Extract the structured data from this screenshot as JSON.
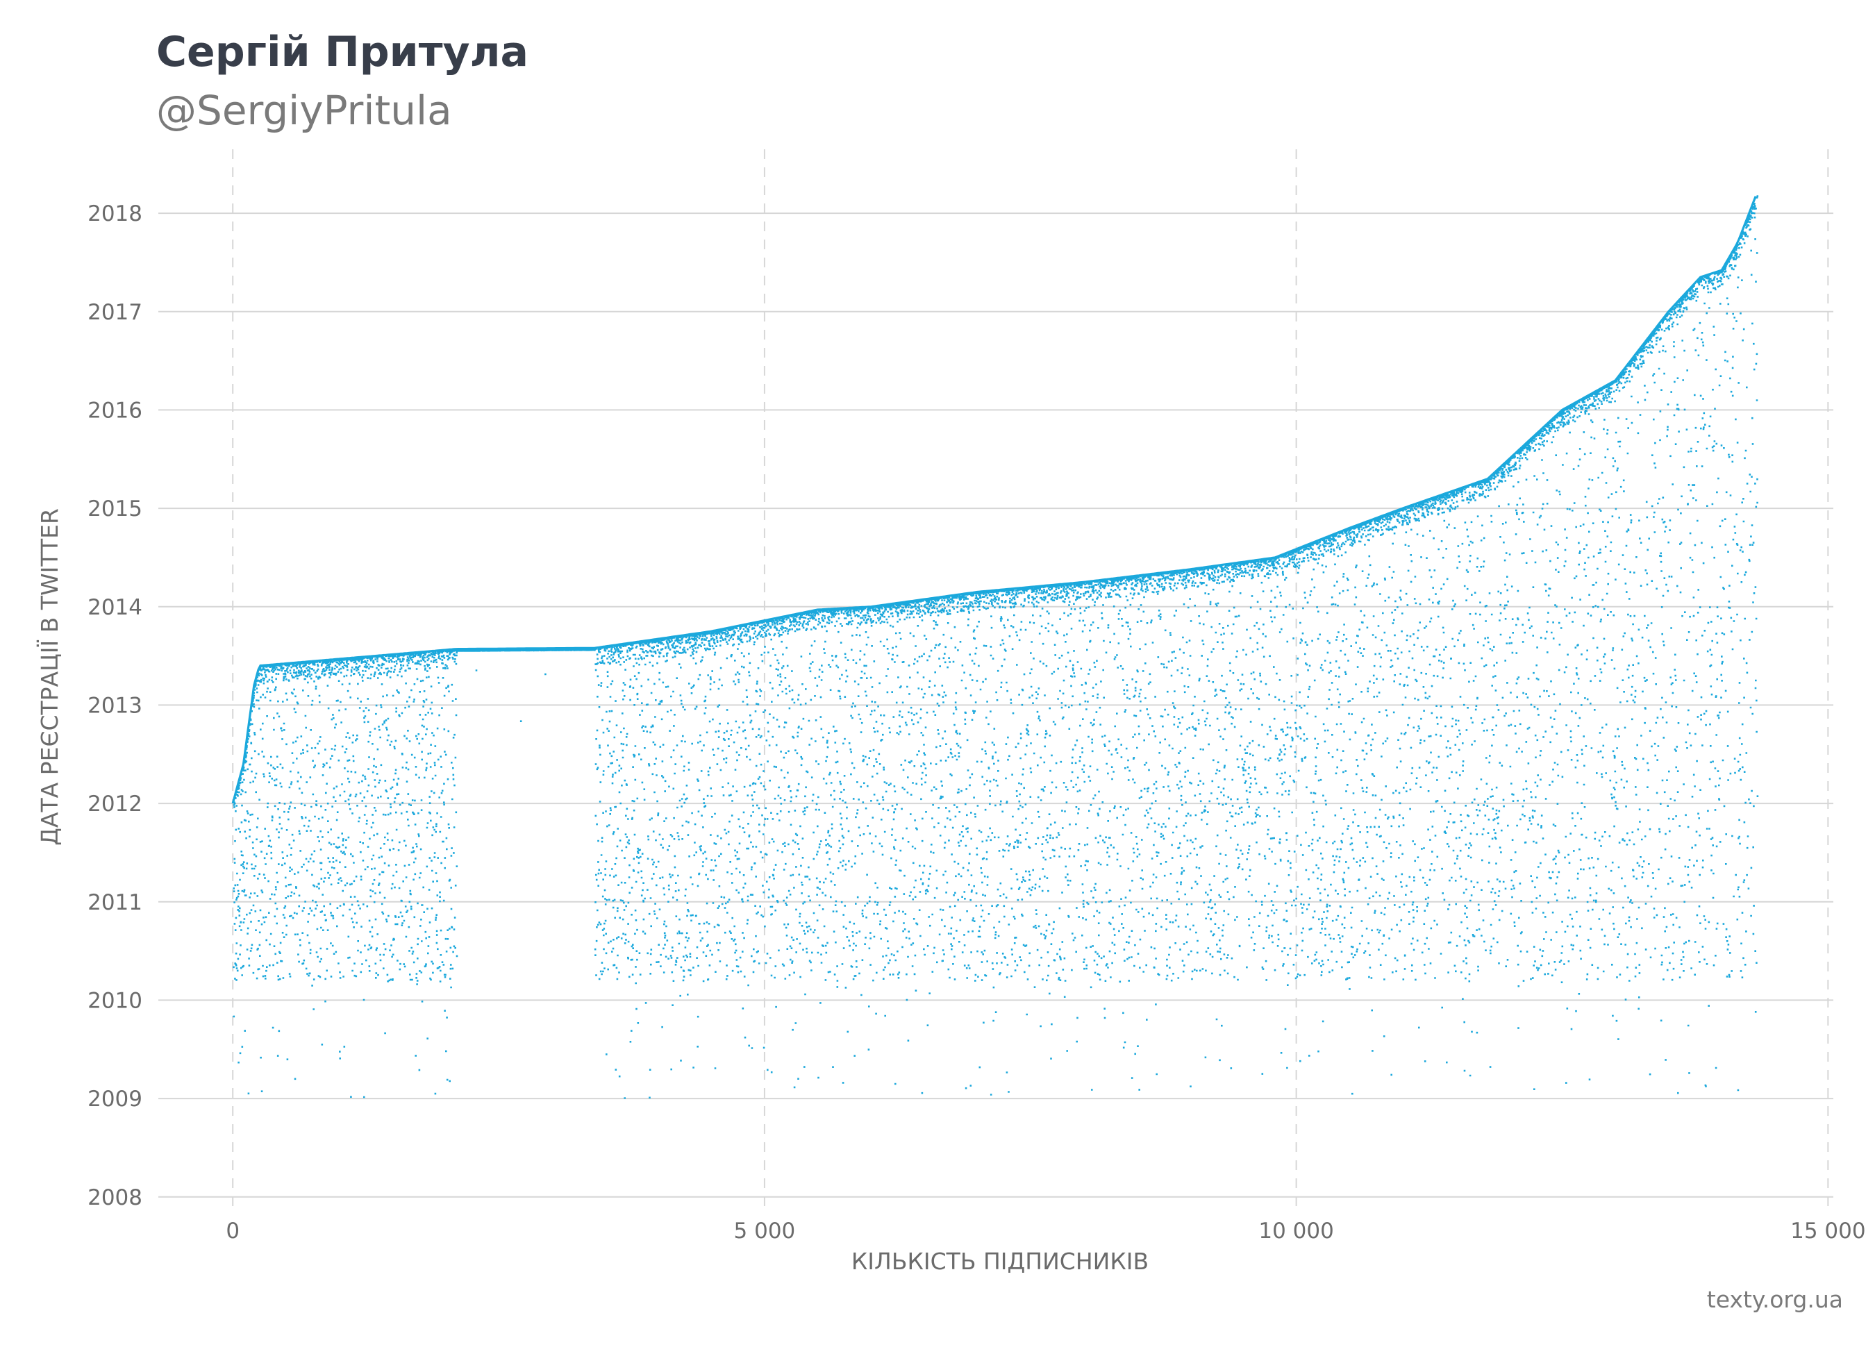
{
  "header": {
    "title": "Сергій Притула",
    "subtitle": "@SergiyPritula"
  },
  "source": "texty.org.ua",
  "colors": {
    "points": "#1ba8dc",
    "grid": "#d6d6d6",
    "text": "#6b6b6b",
    "title": "#383e4a"
  },
  "chart_data": {
    "type": "scatter",
    "xlabel": "КІЛЬКІСТЬ ПІДПИСНИКІВ",
    "ylabel": "ДАТА РЕЄСТРАЦІЇ В TWITTER",
    "xlim": [
      -700,
      15050
    ],
    "ylim": [
      2007.85,
      2018.65
    ],
    "x_ticks": [
      0,
      5000,
      10000,
      15000
    ],
    "x_tick_labels": [
      "0",
      "5 000",
      "10 000",
      "15 000"
    ],
    "y_ticks": [
      2008,
      2009,
      2010,
      2011,
      2012,
      2013,
      2014,
      2015,
      2016,
      2017,
      2018
    ],
    "y_tick_labels": [
      "2008",
      "2009",
      "2010",
      "2011",
      "2012",
      "2013",
      "2014",
      "2015",
      "2016",
      "2017",
      "2018"
    ],
    "grid": {
      "horizontal": "solid",
      "vertical": "dashed"
    },
    "frontier": {
      "x": [
        0,
        100,
        200,
        250,
        2100,
        3400,
        4500,
        5500,
        6000,
        7000,
        8000,
        9000,
        9800,
        10500,
        11000,
        11800,
        12500,
        13000,
        13500,
        13800,
        14000,
        14150,
        14330
      ],
      "y": [
        2012.0,
        2012.4,
        2013.2,
        2013.4,
        2013.57,
        2013.58,
        2013.75,
        2013.97,
        2014.0,
        2014.15,
        2014.25,
        2014.38,
        2014.5,
        2014.8,
        2015.0,
        2015.3,
        2016.0,
        2016.3,
        2017.0,
        2017.35,
        2017.42,
        2017.7,
        2018.2
      ]
    },
    "gap": [
      2100,
      3400
    ],
    "point_count": 14330
  }
}
